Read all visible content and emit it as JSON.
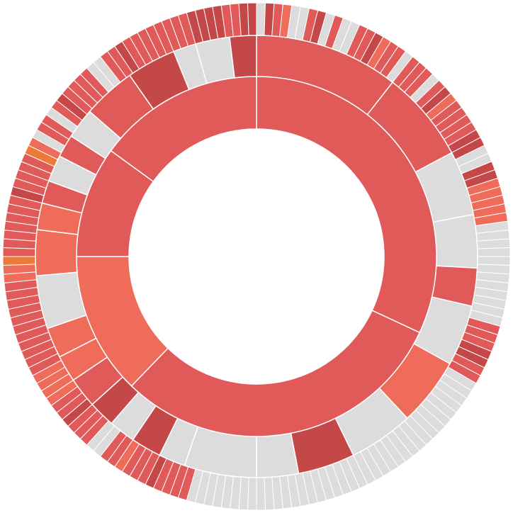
{
  "chart_data": {
    "type": "sunburst",
    "title": "",
    "levels": 3,
    "legend": "none",
    "colors": {
      "neutral": "#dcdcdc",
      "red": "#e05a5a",
      "dark_red": "#c44848",
      "orange": "#ef6b5a",
      "strong_orange": "#ee7a3a"
    },
    "inner_ring": [
      {
        "start": 0.0,
        "end": 115.0,
        "color": "red"
      },
      {
        "start": 115.0,
        "end": 224.0,
        "color": "red"
      },
      {
        "start": 224.0,
        "end": 270.0,
        "color": "orange"
      },
      {
        "start": 270.0,
        "end": 306.0,
        "color": "red"
      },
      {
        "start": 306.0,
        "end": 360.0,
        "color": "red"
      }
    ],
    "middle_ring": [
      {
        "start": 0.0,
        "end": 38.0,
        "color": "red"
      },
      {
        "start": 38.0,
        "end": 62.0,
        "color": "red"
      },
      {
        "start": 62.0,
        "end": 79.0,
        "color": "neutral"
      },
      {
        "start": 79.0,
        "end": 93.0,
        "color": "neutral"
      },
      {
        "start": 93.0,
        "end": 103.0,
        "color": "red"
      },
      {
        "start": 103.0,
        "end": 119.0,
        "color": "neutral"
      },
      {
        "start": 119.0,
        "end": 137.0,
        "color": "orange"
      },
      {
        "start": 137.0,
        "end": 154.0,
        "color": "neutral"
      },
      {
        "start": 154.0,
        "end": 169.0,
        "color": "dark_red"
      },
      {
        "start": 169.0,
        "end": 180.0,
        "color": "neutral"
      },
      {
        "start": 180.0,
        "end": 199.0,
        "color": "neutral"
      },
      {
        "start": 199.0,
        "end": 206.0,
        "color": "neutral"
      },
      {
        "start": 206.0,
        "end": 214.0,
        "color": "dark_red"
      },
      {
        "start": 214.0,
        "end": 221.0,
        "color": "neutral"
      },
      {
        "start": 221.0,
        "end": 228.0,
        "color": "dark_red"
      },
      {
        "start": 228.0,
        "end": 236.0,
        "color": "red"
      },
      {
        "start": 236.0,
        "end": 243.0,
        "color": "orange"
      },
      {
        "start": 243.0,
        "end": 251.0,
        "color": "orange"
      },
      {
        "start": 251.0,
        "end": 265.0,
        "color": "neutral"
      },
      {
        "start": 265.0,
        "end": 277.0,
        "color": "orange"
      },
      {
        "start": 277.0,
        "end": 284.0,
        "color": "orange"
      },
      {
        "start": 284.0,
        "end": 290.0,
        "color": "red"
      },
      {
        "start": 290.0,
        "end": 297.0,
        "color": "neutral"
      },
      {
        "start": 297.0,
        "end": 303.0,
        "color": "red"
      },
      {
        "start": 303.0,
        "end": 311.0,
        "color": "neutral"
      },
      {
        "start": 311.0,
        "end": 325.0,
        "color": "red"
      },
      {
        "start": 325.0,
        "end": 338.0,
        "color": "dark_red"
      },
      {
        "start": 338.0,
        "end": 344.0,
        "color": "neutral"
      },
      {
        "start": 344.0,
        "end": 353.0,
        "color": "neutral"
      },
      {
        "start": 353.0,
        "end": 360.0,
        "color": "dark_red"
      }
    ],
    "outer_ring_segments": 180,
    "outer_ring_accents": {
      "red": [
        2,
        6,
        9,
        12,
        13,
        16,
        17,
        19,
        20,
        21,
        23,
        26,
        27,
        28,
        29,
        53,
        54,
        55,
        58,
        59,
        98,
        99,
        100,
        101,
        103,
        104,
        105,
        107,
        108,
        111,
        112,
        113,
        115,
        116,
        121,
        122,
        123,
        124,
        125,
        126,
        127,
        128,
        129,
        130,
        131,
        133,
        134,
        135,
        136,
        137,
        138,
        139,
        140,
        141,
        143,
        144,
        145,
        146,
        150,
        151,
        153,
        155,
        156,
        157,
        158,
        161,
        162,
        164,
        165,
        166,
        167,
        168,
        169,
        170,
        171,
        176,
        177
      ],
      "dark_red": [
        1,
        7,
        14,
        24,
        30,
        31,
        34,
        35,
        56,
        57,
        102,
        106,
        114,
        142,
        154,
        163,
        172,
        173,
        174,
        175,
        178,
        179
      ],
      "orange": [
        3,
        15,
        25,
        36,
        37,
        38,
        39,
        40,
        106,
        117,
        118,
        119,
        120,
        132,
        133,
        148
      ],
      "strong_orange": [
        134,
        147
      ]
    }
  }
}
